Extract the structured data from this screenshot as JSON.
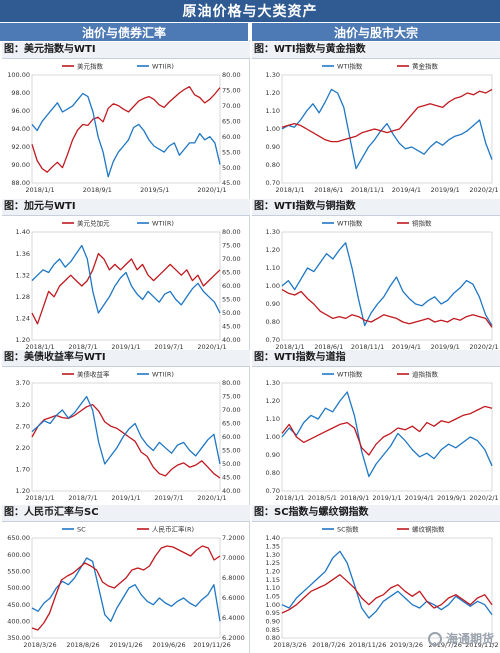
{
  "page": {
    "title": "原油价格与大类资产",
    "left_section": "油价与债券汇率",
    "right_section": "油价与股市大宗",
    "watermark": "海通期货"
  },
  "colors": {
    "red": "#c0191f",
    "blue": "#1f77c4"
  },
  "panels": [
    {
      "title": "图：美元指数与WTI",
      "legend": [
        "美元指数",
        "WTI(R)"
      ],
      "chart_data": {
        "type": "line",
        "x_ticks": [
          "2018/1/1",
          "2018/9/1",
          "2019/5/1",
          "2020/1/1"
        ],
        "y_left": {
          "ticks": [
            "88.00",
            "90.00",
            "92.00",
            "94.00",
            "96.00",
            "98.00",
            "100.00"
          ],
          "range": [
            88,
            100
          ]
        },
        "y_right": {
          "ticks": [
            "45.00",
            "50.00",
            "55.00",
            "60.00",
            "65.00",
            "70.00",
            "75.00",
            "80.00"
          ],
          "range": [
            45,
            80
          ]
        },
        "series": [
          {
            "name": "美元指数",
            "axis": "left",
            "color": "red",
            "values": [
              92.3,
              90.5,
              89.6,
              89.2,
              89.8,
              90.3,
              89.7,
              91.2,
              92.8,
              93.9,
              94.5,
              94.4,
              95.1,
              95.3,
              94.8,
              96.3,
              96.8,
              96.6,
              96.2,
              95.9,
              96.5,
              97.1,
              97.4,
              97.6,
              97.3,
              96.7,
              96.4,
              97.0,
              97.5,
              98.0,
              98.4,
              98.7,
              97.8,
              97.5,
              96.9,
              97.3,
              97.9,
              98.6
            ]
          },
          {
            "name": "WTI(R)",
            "axis": "right",
            "color": "blue",
            "values": [
              64,
              62,
              65,
              67,
              69,
              71,
              68,
              69,
              70,
              72,
              74,
              73,
              68,
              60,
              55,
              47,
              52,
              55,
              57,
              59,
              63,
              64,
              62,
              59,
              57,
              56,
              55,
              57,
              58,
              54,
              56,
              58,
              58,
              61,
              59,
              60,
              58,
              51
            ]
          }
        ]
      }
    },
    {
      "title": "图：WTI指数与黄金指数",
      "legend": [
        "WTI指数",
        "黄金指数"
      ],
      "chart_data": {
        "type": "line",
        "x_ticks": [
          "2018/1/1",
          "2018/6/1",
          "2018/11/1",
          "2019/4/1",
          "2019/9/1",
          "2020/2/1"
        ],
        "y_left": {
          "ticks": [
            "0.70",
            "0.80",
            "0.90",
            "1.00",
            "1.10",
            "1.20",
            "1.30"
          ],
          "range": [
            0.7,
            1.3
          ]
        },
        "series": [
          {
            "name": "WTI指数",
            "axis": "left",
            "color": "blue",
            "values": [
              1.0,
              1.02,
              1.01,
              1.05,
              1.1,
              1.14,
              1.09,
              1.15,
              1.22,
              1.2,
              1.12,
              0.95,
              0.78,
              0.84,
              0.9,
              0.94,
              0.99,
              1.03,
              0.97,
              0.92,
              0.89,
              0.9,
              0.88,
              0.86,
              0.9,
              0.93,
              0.91,
              0.94,
              0.96,
              0.97,
              0.99,
              1.02,
              1.05,
              0.92,
              0.83
            ]
          },
          {
            "name": "黄金指数",
            "axis": "left",
            "color": "red",
            "values": [
              1.01,
              1.02,
              1.03,
              1.02,
              1.0,
              0.98,
              0.96,
              0.94,
              0.93,
              0.93,
              0.94,
              0.95,
              0.96,
              0.98,
              0.99,
              1.0,
              0.99,
              0.98,
              0.99,
              1.0,
              1.04,
              1.08,
              1.12,
              1.13,
              1.14,
              1.13,
              1.12,
              1.15,
              1.17,
              1.18,
              1.2,
              1.19,
              1.21,
              1.2,
              1.22
            ]
          }
        ]
      }
    },
    {
      "title": "图：加元与WTI",
      "legend": [
        "美元兑加元",
        "WTI(R)"
      ],
      "chart_data": {
        "type": "line",
        "x_ticks": [
          "2018/1/1",
          "2018/7/1",
          "2019/1/1",
          "2019/7/1",
          "2020/1/1"
        ],
        "y_left": {
          "ticks": [
            "1.20",
            "1.24",
            "1.28",
            "1.32",
            "1.36",
            "1.40"
          ],
          "range": [
            1.2,
            1.4
          ]
        },
        "y_right": {
          "ticks": [
            "40.00",
            "45.00",
            "50.00",
            "55.00",
            "60.00",
            "65.00",
            "70.00",
            "75.00",
            "80.00"
          ],
          "range": [
            40,
            80
          ]
        },
        "series": [
          {
            "name": "美元兑加元",
            "axis": "left",
            "color": "red",
            "values": [
              1.25,
              1.23,
              1.26,
              1.29,
              1.28,
              1.3,
              1.31,
              1.32,
              1.31,
              1.3,
              1.31,
              1.33,
              1.36,
              1.35,
              1.33,
              1.34,
              1.33,
              1.34,
              1.35,
              1.33,
              1.34,
              1.32,
              1.31,
              1.32,
              1.33,
              1.34,
              1.33,
              1.32,
              1.33,
              1.31,
              1.32,
              1.3,
              1.31,
              1.32,
              1.33
            ]
          },
          {
            "name": "WTI(R)",
            "axis": "right",
            "color": "blue",
            "values": [
              62,
              64,
              66,
              65,
              68,
              70,
              67,
              69,
              72,
              75,
              70,
              58,
              50,
              53,
              56,
              60,
              63,
              65,
              60,
              57,
              55,
              58,
              56,
              54,
              57,
              58,
              55,
              53,
              56,
              59,
              61,
              58,
              56,
              54,
              50
            ]
          }
        ]
      }
    },
    {
      "title": "图：WTI指数与铜指数",
      "legend": [
        "WTI指数",
        "铜指数"
      ],
      "chart_data": {
        "type": "line",
        "x_ticks": [
          "2018/1/1",
          "2018/6/1",
          "2018/11/1",
          "2019/4/1",
          "2019/9/1",
          "2020/2/1"
        ],
        "y_left": {
          "ticks": [
            "0.70",
            "0.80",
            "0.90",
            "1.00",
            "1.10",
            "1.20",
            "1.30"
          ],
          "range": [
            0.7,
            1.3
          ]
        },
        "series": [
          {
            "name": "WTI指数",
            "axis": "left",
            "color": "blue",
            "values": [
              1.0,
              1.03,
              0.98,
              1.04,
              1.1,
              1.08,
              1.13,
              1.18,
              1.15,
              1.2,
              1.24,
              1.1,
              0.93,
              0.78,
              0.85,
              0.9,
              0.94,
              1.0,
              1.05,
              0.97,
              0.93,
              0.9,
              0.89,
              0.92,
              0.94,
              0.9,
              0.92,
              0.96,
              0.99,
              1.03,
              1.01,
              0.94,
              0.84,
              0.78
            ]
          },
          {
            "name": "铜指数",
            "axis": "left",
            "color": "red",
            "values": [
              0.98,
              0.96,
              0.95,
              0.97,
              0.93,
              0.9,
              0.86,
              0.84,
              0.82,
              0.83,
              0.82,
              0.84,
              0.83,
              0.81,
              0.8,
              0.82,
              0.84,
              0.83,
              0.82,
              0.8,
              0.79,
              0.8,
              0.81,
              0.82,
              0.8,
              0.81,
              0.8,
              0.82,
              0.81,
              0.83,
              0.84,
              0.83,
              0.82,
              0.77
            ]
          }
        ]
      }
    },
    {
      "title": "图：美债收益率与WTI",
      "legend": [
        "美债收益率",
        "WTI(R)"
      ],
      "chart_data": {
        "type": "line",
        "x_ticks": [
          "2018/1/1",
          "2018/7/1",
          "2019/1/1",
          "2019/7/1",
          "2020/1/1"
        ],
        "y_left": {
          "ticks": [
            "1.20",
            "1.70",
            "2.20",
            "2.70",
            "3.20",
            "3.70"
          ],
          "range": [
            1.2,
            3.7
          ]
        },
        "y_right": {
          "ticks": [
            "40.00",
            "45.00",
            "50.00",
            "55.00",
            "60.00",
            "65.00",
            "70.00",
            "75.00",
            "80.00"
          ],
          "range": [
            40,
            80
          ]
        },
        "series": [
          {
            "name": "美债收益率",
            "axis": "left",
            "color": "red",
            "values": [
              2.45,
              2.7,
              2.85,
              2.9,
              2.95,
              2.9,
              2.88,
              2.95,
              3.05,
              3.15,
              3.2,
              3.05,
              2.8,
              2.7,
              2.65,
              2.55,
              2.45,
              2.35,
              2.1,
              2.0,
              1.75,
              1.6,
              1.55,
              1.7,
              1.8,
              1.85,
              1.75,
              1.8,
              1.9,
              1.75,
              1.6,
              1.5
            ]
          },
          {
            "name": "WTI(R)",
            "axis": "right",
            "color": "blue",
            "values": [
              62,
              64,
              66,
              65,
              68,
              70,
              67,
              69,
              72,
              75,
              70,
              58,
              50,
              53,
              56,
              60,
              63,
              65,
              60,
              57,
              55,
              58,
              56,
              54,
              57,
              58,
              55,
              53,
              56,
              59,
              61,
              50
            ]
          }
        ]
      }
    },
    {
      "title": "图：WTI指数与道指",
      "legend": [
        "WTI指数",
        "道指指数"
      ],
      "chart_data": {
        "type": "line",
        "x_ticks": [
          "2018/1/1",
          "2018/5/1",
          "2018/9/1",
          "2019/1/1",
          "2019/4/1",
          "2019/9/1",
          "2020/2/1"
        ],
        "y_left": {
          "ticks": [
            "0.70",
            "0.80",
            "0.90",
            "1.00",
            "1.10",
            "1.20",
            "1.30"
          ],
          "range": [
            0.7,
            1.3
          ]
        },
        "series": [
          {
            "name": "WTI指数",
            "axis": "left",
            "color": "blue",
            "values": [
              1.0,
              1.05,
              1.01,
              1.08,
              1.12,
              1.1,
              1.16,
              1.14,
              1.2,
              1.25,
              1.12,
              0.92,
              0.78,
              0.85,
              0.9,
              0.95,
              1.02,
              0.98,
              0.93,
              0.89,
              0.91,
              0.88,
              0.93,
              0.96,
              0.94,
              0.97,
              1.0,
              0.98,
              0.93,
              0.84
            ]
          },
          {
            "name": "道指指数",
            "axis": "left",
            "color": "red",
            "values": [
              1.02,
              1.07,
              1.0,
              0.97,
              0.99,
              1.01,
              1.03,
              1.05,
              1.07,
              1.08,
              1.05,
              0.94,
              0.9,
              0.96,
              1.0,
              1.02,
              1.05,
              1.04,
              1.06,
              1.03,
              1.08,
              1.06,
              1.09,
              1.08,
              1.1,
              1.12,
              1.13,
              1.15,
              1.17,
              1.16
            ]
          }
        ]
      }
    },
    {
      "title": "图：人民币汇率与SC",
      "legend": [
        "SC",
        "人民币汇率(R)"
      ],
      "chart_data": {
        "type": "line",
        "x_ticks": [
          "2018/3/26",
          "2018/8/26",
          "2019/1/26",
          "2019/6/26",
          "2019/11/26"
        ],
        "y_left": {
          "ticks": [
            "350.00",
            "400.00",
            "450.00",
            "500.00",
            "550.00",
            "600.00",
            "650.00"
          ],
          "range": [
            350,
            650
          ]
        },
        "y_right": {
          "ticks": [
            "6.2000",
            "6.4000",
            "6.6000",
            "6.8000",
            "7.0000",
            "7.2000"
          ],
          "range": [
            6.2,
            7.2
          ]
        },
        "series": [
          {
            "name": "SC",
            "axis": "left",
            "color": "blue",
            "values": [
              440,
              430,
              455,
              470,
              500,
              520,
              510,
              530,
              560,
              590,
              580,
              500,
              420,
              400,
              440,
              470,
              500,
              510,
              480,
              460,
              450,
              470,
              455,
              445,
              460,
              470,
              455,
              445,
              465,
              480,
              510,
              400
            ]
          },
          {
            "name": "人民币汇率(R)",
            "axis": "right",
            "color": "red",
            "values": [
              6.3,
              6.28,
              6.35,
              6.45,
              6.62,
              6.78,
              6.82,
              6.85,
              6.9,
              6.95,
              6.92,
              6.88,
              6.76,
              6.72,
              6.7,
              6.75,
              6.8,
              6.88,
              6.9,
              6.88,
              6.92,
              7.02,
              7.1,
              7.12,
              7.11,
              7.08,
              7.05,
              7.02,
              7.08,
              7.12,
              7.1,
              6.98,
              7.02
            ]
          }
        ]
      }
    },
    {
      "title": "图：SC指数与螺纹钢指数",
      "legend": [
        "SC指数",
        "螺纹钢指数"
      ],
      "chart_data": {
        "type": "line",
        "x_ticks": [
          "2018/3/26",
          "2018/7/26",
          "2018/11/26",
          "2019/3/26",
          "2019/7/26",
          "2019/11/26"
        ],
        "y_left": {
          "ticks": [
            "0.80",
            "0.85",
            "0.90",
            "0.95",
            "1.00",
            "1.05",
            "1.10",
            "1.15",
            "1.20",
            "1.25",
            "1.30",
            "1.35",
            "1.40"
          ],
          "range": [
            0.8,
            1.4
          ]
        },
        "series": [
          {
            "name": "SC指数",
            "axis": "left",
            "color": "blue",
            "values": [
              1.0,
              0.98,
              1.04,
              1.08,
              1.12,
              1.16,
              1.2,
              1.28,
              1.32,
              1.25,
              1.12,
              0.98,
              0.92,
              0.96,
              1.02,
              1.05,
              1.08,
              1.04,
              1.0,
              0.98,
              1.02,
              1.0,
              0.97,
              1.0,
              1.05,
              1.02,
              0.99,
              1.02,
              1.0,
              0.94
            ]
          },
          {
            "name": "螺纹钢指数",
            "axis": "left",
            "color": "red",
            "values": [
              0.95,
              0.97,
              1.0,
              1.04,
              1.08,
              1.1,
              1.12,
              1.15,
              1.18,
              1.14,
              1.1,
              1.04,
              1.0,
              1.04,
              1.06,
              1.1,
              1.12,
              1.08,
              1.05,
              1.08,
              1.02,
              0.98,
              1.0,
              1.04,
              1.06,
              1.03,
              1.0,
              1.04,
              1.06,
              1.0
            ]
          }
        ]
      }
    }
  ]
}
